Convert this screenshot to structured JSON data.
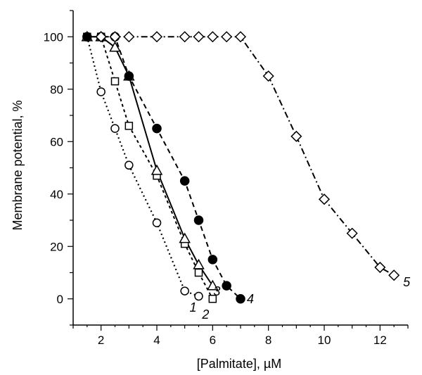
{
  "chart_data": {
    "type": "line",
    "xlabel": "[Palmitate], µM",
    "ylabel": "Membrane potential, %",
    "xlim": [
      1,
      13
    ],
    "ylim": [
      -10,
      110
    ],
    "xticks": [
      2,
      4,
      6,
      8,
      10,
      12
    ],
    "yticks": [
      0,
      20,
      40,
      60,
      80,
      100
    ],
    "grid": false,
    "series": [
      {
        "name": "1",
        "marker": "open-circle",
        "line_style": "dotted",
        "x": [
          1.5,
          2.0,
          2.5,
          3.0,
          4.0,
          5.0,
          5.5
        ],
        "y": [
          100,
          79,
          65,
          51,
          29,
          3,
          1
        ]
      },
      {
        "name": "2",
        "marker": "open-square",
        "line_style": "short-dash",
        "x": [
          1.5,
          2.0,
          2.5,
          3.0,
          4.0,
          5.0,
          5.5,
          6.0
        ],
        "y": [
          100,
          100,
          83,
          66,
          47,
          21,
          10,
          0
        ]
      },
      {
        "name": "3",
        "marker": "open-triangle",
        "line_style": "solid",
        "x": [
          1.5,
          2.0,
          2.5,
          3.0,
          4.0,
          5.0,
          5.5,
          6.0
        ],
        "y": [
          100,
          100,
          96,
          85,
          49,
          23,
          13,
          5
        ]
      },
      {
        "name": "4",
        "marker": "filled-circle",
        "line_style": "dashed",
        "x": [
          1.5,
          2.0,
          2.5,
          3.0,
          4.0,
          5.0,
          5.5,
          6.0,
          6.5,
          7.0
        ],
        "y": [
          100,
          100,
          100,
          85,
          65,
          45,
          30,
          15,
          5,
          0
        ]
      },
      {
        "name": "5",
        "marker": "open-diamond",
        "line_style": "dash-dot",
        "x": [
          2.0,
          2.5,
          3.0,
          4.0,
          5.0,
          5.5,
          6.0,
          6.5,
          7.0,
          8.0,
          9.0,
          10.0,
          11.0,
          12.0,
          12.5
        ],
        "y": [
          100,
          100,
          100,
          100,
          100,
          100,
          100,
          100,
          100,
          85,
          62,
          38,
          25,
          12,
          9
        ]
      }
    ]
  }
}
